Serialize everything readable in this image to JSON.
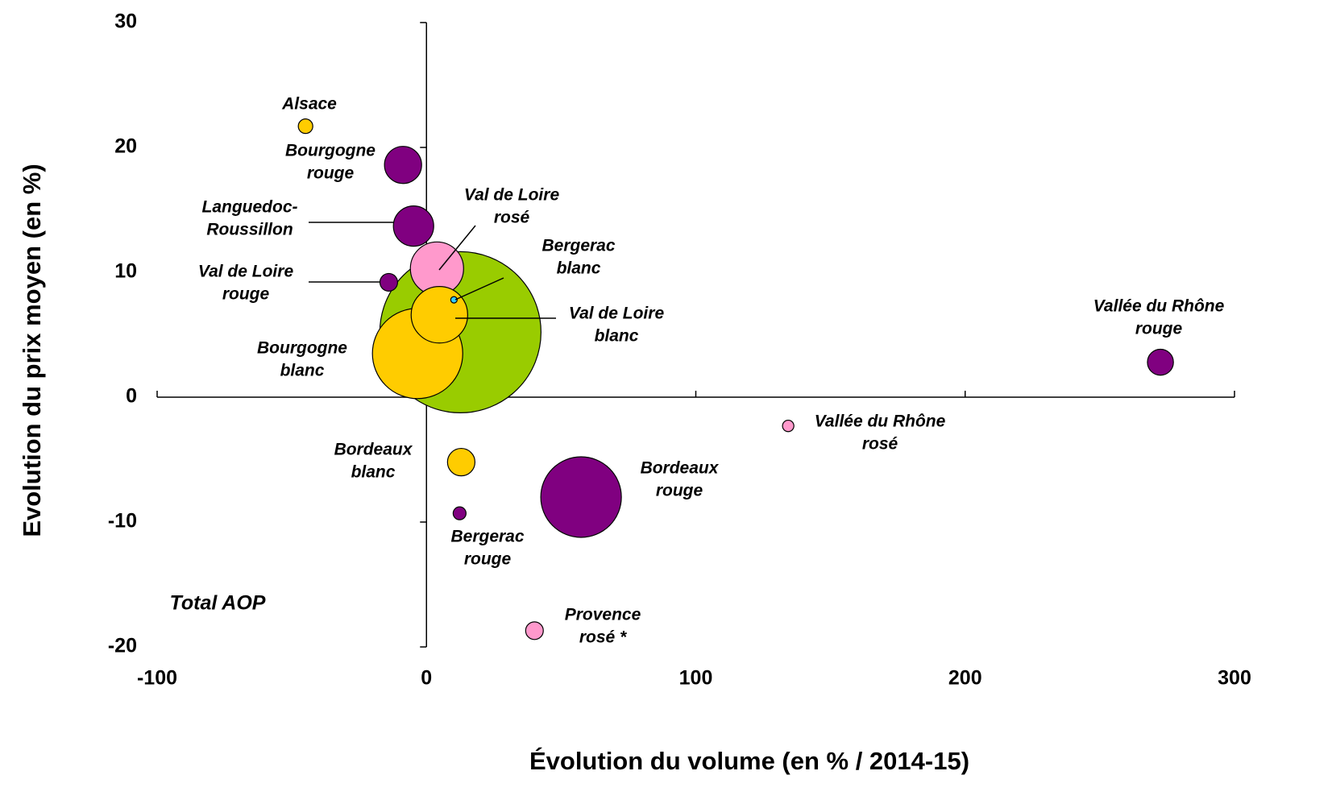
{
  "chart_data": {
    "type": "bubble",
    "xlabel": "Évolution du volume (en % / 2014-15)",
    "ylabel": "Evolution du prix moyen (en %)",
    "annotation": "Total AOP",
    "xlim": [
      -100,
      300
    ],
    "xticks": [
      -100,
      0,
      100,
      200,
      300
    ],
    "ylim": [
      -20,
      30
    ],
    "yticks": [
      -20,
      -10,
      0,
      10,
      20,
      30
    ],
    "points": [
      {
        "label": [],
        "x": 12.6,
        "y": 5.2,
        "size": 100,
        "color": "#99cc00"
      },
      {
        "label": [
          "Alsace"
        ],
        "x": -44.9,
        "y": 21.7,
        "size": 0.81,
        "color": "#ffcc00"
      },
      {
        "label": [
          "Bourgogne",
          "rouge"
        ],
        "x": -8.7,
        "y": 18.6,
        "size": 5.3,
        "color": "#800080"
      },
      {
        "label": [
          "Languedoc-",
          "Roussillon"
        ],
        "x": -4.8,
        "y": 13.7,
        "size": 6.25,
        "color": "#800080"
      },
      {
        "label": [
          "Val de Loire",
          "rouge"
        ],
        "x": -14,
        "y": 9.2,
        "size": 1.2,
        "color": "#800080"
      },
      {
        "label": [
          "Bourgogne",
          "blanc"
        ],
        "x": -3.3,
        "y": 3.5,
        "size": 31.4,
        "color": "#ffcc00"
      },
      {
        "label": [
          "Val de Loire",
          "rosé"
        ],
        "x": 3.9,
        "y": 10.3,
        "size": 10.9,
        "color": "#ff99cc"
      },
      {
        "label": [
          "Val de Loire",
          "blanc"
        ],
        "x": 4.8,
        "y": 6.6,
        "size": 12.3,
        "color": "#ffcc00"
      },
      {
        "label": [
          "Bergerac",
          "blanc"
        ],
        "x": 10.2,
        "y": 7.8,
        "size": 0.16,
        "color": "#33ccff"
      },
      {
        "label": [
          "Bordeaux",
          "blanc"
        ],
        "x": 12.9,
        "y": -5.2,
        "size": 2.9,
        "color": "#ffcc00"
      },
      {
        "label": [
          "Bergerac",
          "rouge"
        ],
        "x": 12.3,
        "y": -9.3,
        "size": 0.64,
        "color": "#800080"
      },
      {
        "label": [
          "Bordeaux",
          "rouge"
        ],
        "x": 57.4,
        "y": -8.0,
        "size": 25,
        "color": "#800080"
      },
      {
        "label": [
          "Provence",
          "rosé *"
        ],
        "x": 40.1,
        "y": -18.7,
        "size": 1.2,
        "color": "#ff99cc"
      },
      {
        "label": [
          "Vallée du Rhône",
          "rosé"
        ],
        "x": 134.3,
        "y": -2.3,
        "size": 0.5,
        "color": "#ff99cc"
      },
      {
        "label": [
          "Vallée du Rhône",
          "rouge"
        ],
        "x": 272.5,
        "y": 2.8,
        "size": 2.6,
        "color": "#800080"
      }
    ]
  }
}
